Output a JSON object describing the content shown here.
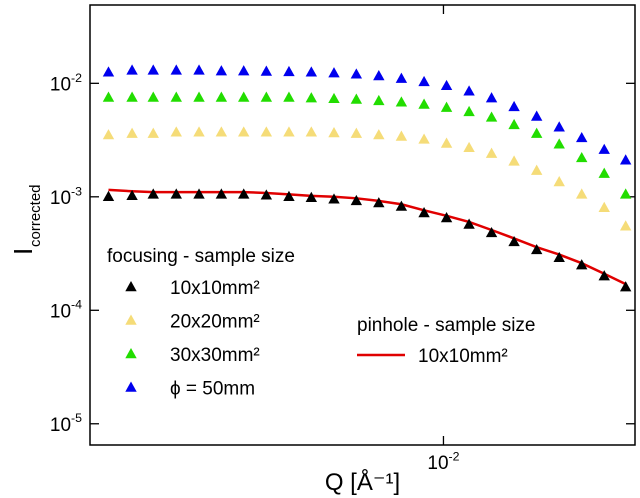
{
  "chart_data": {
    "type": "scatter",
    "x_label": "Q [Å⁻¹]",
    "y_label": "I",
    "y_label_subscript": "corrected",
    "log_x": true,
    "log_y": true,
    "xlim": [
      0.00183,
      0.0251
    ],
    "ylim": [
      6.5e-06,
      0.049
    ],
    "xticks": [
      {
        "value": 0.01,
        "label": "10-2"
      }
    ],
    "yticks": [
      {
        "value": 1e-05,
        "label": "10-5"
      },
      {
        "value": 0.0001,
        "label": "10-4"
      },
      {
        "value": 0.001,
        "label": "10-3"
      },
      {
        "value": 0.01,
        "label": "10-2"
      }
    ],
    "legend_title": "focusing - sample size",
    "legend2_title": "pinhole - sample size",
    "x": [
      0.002,
      0.00224,
      0.00248,
      0.00277,
      0.00309,
      0.00344,
      0.00383,
      0.00427,
      0.00476,
      0.0053,
      0.00591,
      0.00658,
      0.00733,
      0.00817,
      0.00911,
      0.01015,
      0.01131,
      0.0126,
      0.01404,
      0.01565,
      0.01744,
      0.01943,
      0.02165,
      0.024
    ],
    "series": [
      {
        "name": "10x10mm²",
        "color": "#000000",
        "marker": "triangle",
        "values": [
          0.001,
          0.00102,
          0.00105,
          0.00105,
          0.00105,
          0.00105,
          0.00105,
          0.00103,
          0.001,
          0.00098,
          0.00095,
          0.00092,
          0.00088,
          0.00082,
          0.00072,
          0.00065,
          0.00057,
          0.00048,
          0.0004,
          0.00034,
          0.00029,
          0.00025,
          0.0002,
          0.00016
        ]
      },
      {
        "name": "20x20mm²",
        "color": "#f5dc78",
        "marker": "triangle",
        "values": [
          0.0035,
          0.0036,
          0.0036,
          0.0037,
          0.0037,
          0.0037,
          0.0037,
          0.0037,
          0.0037,
          0.0037,
          0.00365,
          0.0036,
          0.0035,
          0.0034,
          0.0032,
          0.00295,
          0.0027,
          0.0024,
          0.00205,
          0.0017,
          0.00135,
          0.00105,
          0.0008,
          0.00055
        ]
      },
      {
        "name": "30x30mm²",
        "color": "#22dd00",
        "marker": "triangle",
        "values": [
          0.0075,
          0.0075,
          0.0075,
          0.0075,
          0.0075,
          0.0075,
          0.0075,
          0.0075,
          0.0075,
          0.0074,
          0.0073,
          0.0072,
          0.007,
          0.0068,
          0.0065,
          0.0061,
          0.0056,
          0.005,
          0.0043,
          0.0036,
          0.0029,
          0.0022,
          0.0016,
          0.00105
        ]
      },
      {
        "name": "ϕ = 50mm",
        "color": "#0000ee",
        "marker": "triangle",
        "values": [
          0.0125,
          0.013,
          0.013,
          0.013,
          0.013,
          0.0128,
          0.0128,
          0.0127,
          0.0126,
          0.0125,
          0.0123,
          0.012,
          0.0116,
          0.011,
          0.0103,
          0.0095,
          0.0085,
          0.0074,
          0.0062,
          0.0051,
          0.0041,
          0.0033,
          0.0026,
          0.0021
        ]
      },
      {
        "name": "10x10mm²",
        "color": "#e00000",
        "marker": "line",
        "values": [
          0.00115,
          0.00112,
          0.0011,
          0.0011,
          0.0011,
          0.0011,
          0.0011,
          0.00108,
          0.00105,
          0.00102,
          0.001,
          0.00097,
          0.00092,
          0.00086,
          0.00076,
          0.00068,
          0.0006,
          0.00051,
          0.00043,
          0.00036,
          0.00031,
          0.00026,
          0.00021,
          0.00017
        ]
      }
    ]
  }
}
